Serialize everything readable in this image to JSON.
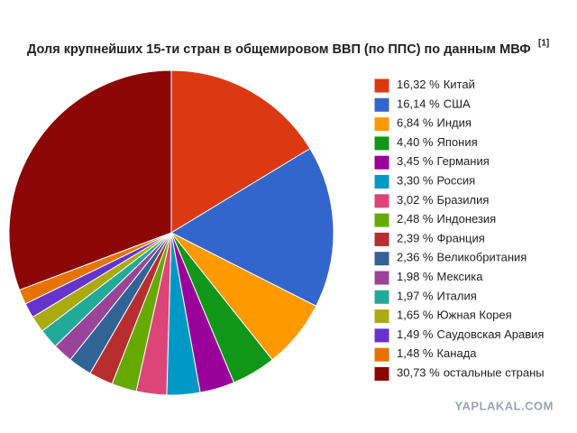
{
  "chart_data": {
    "type": "pie",
    "title": "Доля крупнейших 15-ти стран в общемировом ВВП (по ППС) по данным МВФ",
    "title_note": "[1]",
    "categories": [
      "Китай",
      "США",
      "Индия",
      "Япония",
      "Германия",
      "Россия",
      "Бразилия",
      "Индонезия",
      "Франция",
      "Великобритания",
      "Мексика",
      "Италия",
      "Южная Корея",
      "Саудовская Аравия",
      "Канада",
      "остальные страны"
    ],
    "values": [
      16.32,
      16.14,
      6.84,
      4.4,
      3.45,
      3.3,
      3.02,
      2.48,
      2.39,
      2.36,
      1.98,
      1.97,
      1.65,
      1.49,
      1.48,
      30.73
    ],
    "value_labels": [
      "16,32 %",
      "16,14 %",
      "6,84 %",
      "4,40 %",
      "3,45 %",
      "3,30 %",
      "3,02 %",
      "2,48 %",
      "2,39 %",
      "2,36 %",
      "1,98 %",
      "1,97 %",
      "1,65 %",
      "1,49 %",
      "1,48 %",
      "30,73 %"
    ],
    "colors": [
      "#dc3912",
      "#3366cc",
      "#ff9900",
      "#109618",
      "#990099",
      "#0099c6",
      "#dd4477",
      "#66aa00",
      "#b82e2e",
      "#316395",
      "#994499",
      "#22aa99",
      "#aaaa11",
      "#6633cc",
      "#e67300",
      "#8b0707"
    ],
    "legend": "right",
    "watermark": "YAPLAKAL.COM"
  }
}
